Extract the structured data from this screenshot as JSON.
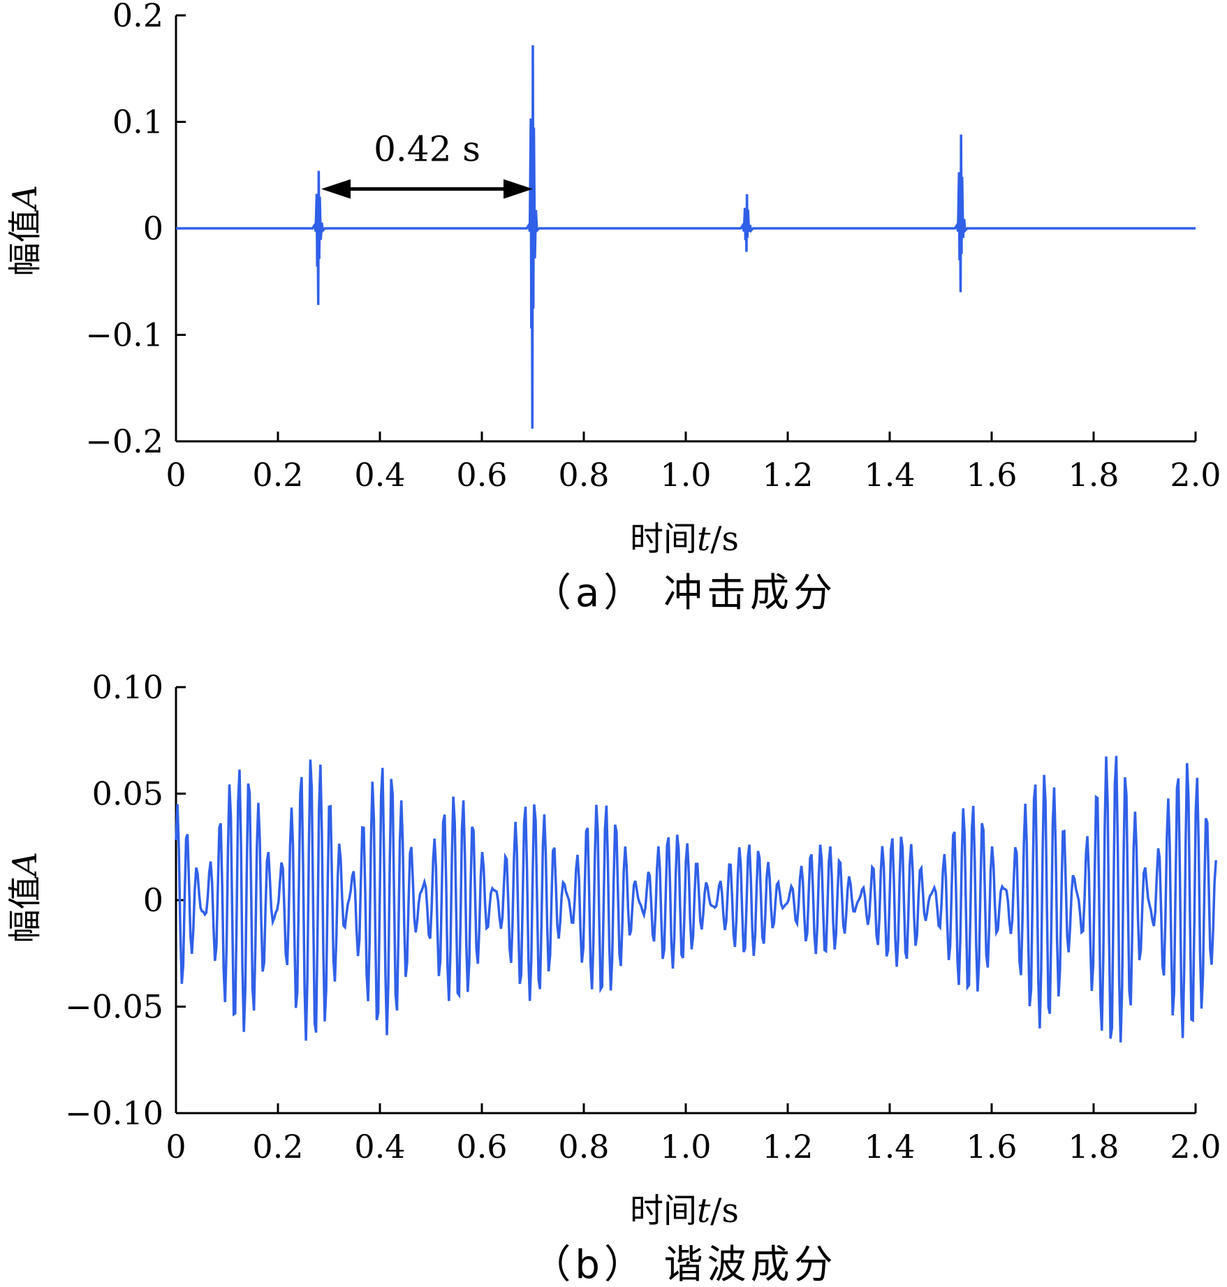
{
  "chart_data": [
    {
      "type": "line",
      "caption": "（a） 冲击成分",
      "xlabel_cn": "时间",
      "xlabel_var": "t",
      "xlabel_unit": "/s",
      "ylabel_cn": "幅值",
      "ylabel_var": "A",
      "xlim": [
        0,
        2.0
      ],
      "ylim": [
        -0.2,
        0.2
      ],
      "xticks": [
        "0",
        "0.2",
        "0.4",
        "0.6",
        "0.8",
        "1.0",
        "1.2",
        "1.4",
        "1.6",
        "1.8",
        "2.0"
      ],
      "yticks": [
        "0.2",
        "0.1",
        "0",
        "−0.1",
        "−0.2"
      ],
      "color": "#3060e8",
      "annotation": {
        "text": "0.42 s",
        "x_start": 0.285,
        "x_end": 0.7
      },
      "impulses": [
        {
          "t": 0.28,
          "max": 0.054,
          "min": -0.072
        },
        {
          "t": 0.7,
          "max": 0.172,
          "min": -0.188
        },
        {
          "t": 1.12,
          "max": 0.032,
          "min": -0.022
        },
        {
          "t": 1.54,
          "max": 0.088,
          "min": -0.06
        }
      ]
    },
    {
      "type": "line",
      "caption": "（b） 谐波成分",
      "xlabel_cn": "时间",
      "xlabel_var": "t",
      "xlabel_unit": "/s",
      "ylabel_cn": "幅值",
      "ylabel_var": "A",
      "xlim": [
        0,
        2.0
      ],
      "ylim": [
        -0.1,
        0.1
      ],
      "xticks": [
        "0",
        "0.2",
        "0.4",
        "0.6",
        "0.8",
        "1.0",
        "1.2",
        "1.4",
        "1.6",
        "1.8",
        "2.0"
      ],
      "yticks": [
        "0.10",
        "0.05",
        "0",
        "−0.05",
        "−0.10"
      ],
      "color": "#3060e8",
      "envelope": [
        {
          "t": 0.0,
          "a": 0.05
        },
        {
          "t": 0.2,
          "a": 0.07
        },
        {
          "t": 0.4,
          "a": 0.065
        },
        {
          "t": 0.6,
          "a": 0.045
        },
        {
          "t": 0.8,
          "a": 0.05
        },
        {
          "t": 1.0,
          "a": 0.03
        },
        {
          "t": 1.2,
          "a": 0.025
        },
        {
          "t": 1.4,
          "a": 0.03
        },
        {
          "t": 1.6,
          "a": 0.05
        },
        {
          "t": 1.8,
          "a": 0.072
        },
        {
          "t": 2.0,
          "a": 0.065
        }
      ]
    }
  ]
}
